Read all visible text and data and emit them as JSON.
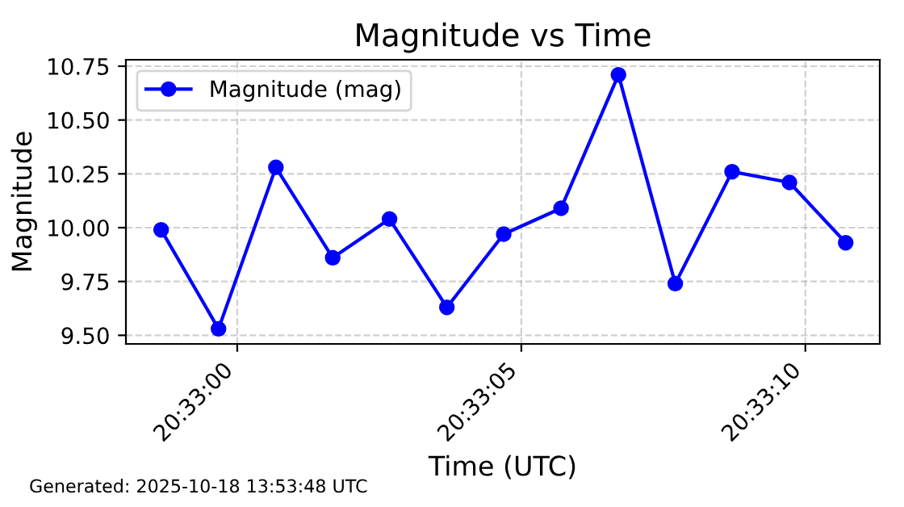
{
  "chart_data": {
    "type": "line",
    "title": "Magnitude vs Time",
    "xlabel": "Time (UTC)",
    "ylabel": "Magnitude",
    "x": [
      "2025-10-18T20:32:58.66",
      "2025-10-18T20:32:59.67",
      "2025-10-18T20:33:00.68",
      "2025-10-18T20:33:01.68",
      "2025-10-18T20:33:02.68",
      "2025-10-18T20:33:03.69",
      "2025-10-18T20:33:04.69",
      "2025-10-18T20:33:05.70",
      "2025-10-18T20:33:06.71",
      "2025-10-18T20:33:07.71",
      "2025-10-18T20:33:08.71",
      "2025-10-18T20:33:09.72",
      "2025-10-18T20:33:10.71"
    ],
    "series": [
      {
        "name": "Magnitude (mag)",
        "color": "#0000ff",
        "values": [
          9.99,
          9.53,
          10.28,
          9.86,
          10.04,
          9.63,
          9.97,
          10.09,
          10.71,
          9.74,
          10.26,
          10.21,
          9.93
        ]
      }
    ],
    "xlim": [
      "2025-10-18T20:32:58.04",
      "2025-10-18T20:33:11.31"
    ],
    "xticks": [
      {
        "value": "2025-10-18T20:33:00",
        "label": "20:33:00"
      },
      {
        "value": "2025-10-18T20:33:05",
        "label": "20:33:05"
      },
      {
        "value": "2025-10-18T20:33:10",
        "label": "20:33:10"
      }
    ],
    "ylim": [
      9.46,
      10.78
    ],
    "yticks": [
      {
        "value": 9.5,
        "label": "9.50"
      },
      {
        "value": 9.75,
        "label": "9.75"
      },
      {
        "value": 10.0,
        "label": "10.00"
      },
      {
        "value": 10.25,
        "label": "10.25"
      },
      {
        "value": 10.5,
        "label": "10.50"
      },
      {
        "value": 10.75,
        "label": "10.75"
      }
    ],
    "grid": true,
    "legend": "top left",
    "marker": "circle",
    "line_style": "solid",
    "annotations": [
      "Generated: 2025-10-18 13:53:48 UTC"
    ]
  }
}
